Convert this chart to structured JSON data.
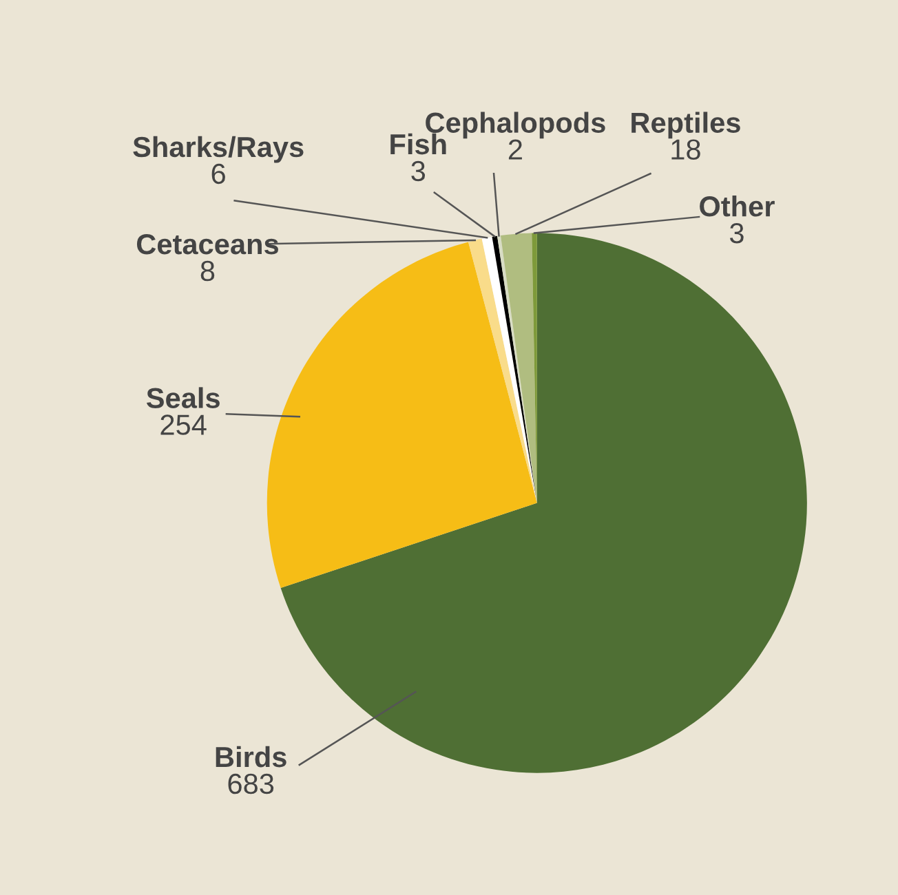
{
  "chart_data": {
    "type": "pie",
    "categories": [
      "Birds",
      "Seals",
      "Cetaceans",
      "Sharks/Rays",
      "Fish",
      "Cephalopods",
      "Reptiles",
      "Other"
    ],
    "values": [
      683,
      254,
      8,
      6,
      3,
      2,
      18,
      3
    ],
    "colors": [
      "#4f6f34",
      "#f6bd16",
      "#f9dc8a",
      "#ffffff",
      "#000000",
      "#d8dcc4",
      "#b0bd80",
      "#7e9a3a"
    ],
    "data_labels": true,
    "legend": false
  }
}
